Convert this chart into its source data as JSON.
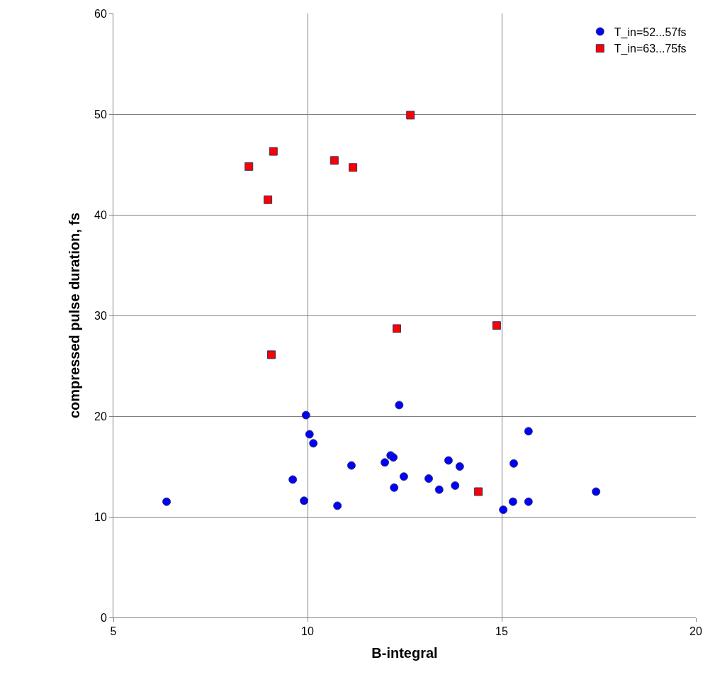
{
  "chart_data": {
    "type": "scatter",
    "xlabel": "B-integral",
    "ylabel": "compressed pulse duration, fs",
    "xlim": [
      5,
      20
    ],
    "xticks": [
      5,
      10,
      15,
      20
    ],
    "ylim": [
      0,
      60
    ],
    "yticks": [
      0,
      10,
      20,
      30,
      40,
      50,
      60
    ],
    "grid": true,
    "legend": "top right",
    "series": [
      {
        "name": "T_in=52...57fs",
        "color": "#0000ff",
        "marker": "circle",
        "x": [
          6.37,
          9.62,
          9.91,
          9.96,
          10.05,
          10.15,
          10.77,
          11.13,
          11.99,
          12.14,
          12.21,
          12.23,
          12.36,
          12.48,
          13.12,
          13.39,
          13.63,
          13.8,
          13.92,
          15.04,
          15.29,
          15.31,
          15.69,
          15.69,
          17.43
        ],
        "values": [
          11.5,
          13.7,
          11.6,
          20.1,
          18.2,
          17.3,
          11.1,
          15.1,
          15.4,
          16.1,
          15.9,
          12.9,
          21.1,
          14.0,
          13.8,
          12.7,
          15.6,
          13.1,
          15.0,
          10.7,
          11.5,
          15.3,
          11.5,
          18.5,
          12.5
        ]
      },
      {
        "name": "T_in=63...75fs",
        "color": "#ff0000",
        "marker": "square",
        "x": [
          8.49,
          9.12,
          8.98,
          9.07,
          10.69,
          11.17,
          12.65,
          12.3,
          14.87,
          14.4
        ],
        "values": [
          44.8,
          46.3,
          41.5,
          26.1,
          45.4,
          44.7,
          49.9,
          28.7,
          29.0,
          12.5
        ]
      }
    ]
  }
}
